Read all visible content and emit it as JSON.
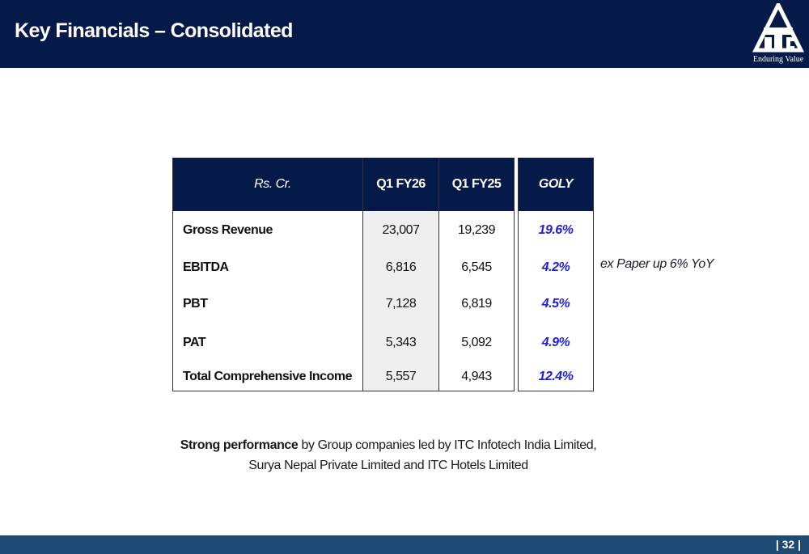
{
  "header": {
    "title": "Key Financials – Consolidated",
    "logo": {
      "tagline": "Enduring Value",
      "icon": "itc-logo-icon"
    }
  },
  "table": {
    "headers": [
      "Rs. Cr.",
      "Q1 FY26",
      "Q1 FY25",
      "GOLY"
    ],
    "rows": [
      {
        "label": "Gross Revenue",
        "cur": "23,007",
        "prev": "19,239",
        "goly": "19.6%"
      },
      {
        "label": "EBITDA",
        "cur": "6,816",
        "prev": "6,545",
        "goly": "4.2%"
      },
      {
        "label": "PBT",
        "cur": "7,128",
        "prev": "6,819",
        "goly": "4.5%"
      },
      {
        "label": "PAT",
        "cur": "5,343",
        "prev": "5,092",
        "goly": "4.9%"
      },
      {
        "label": "Total Comprehensive Income",
        "cur": "5,557",
        "prev": "4,943",
        "goly": "12.4%"
      }
    ]
  },
  "side_note": "ex Paper up 6% YoY",
  "summary": {
    "bold": "Strong performance",
    "line1_rest": " by Group companies led by ITC Infotech India Limited,",
    "line2": "Surya Nepal Private Limited and ITC Hotels Limited"
  },
  "footer": {
    "page_number": "| 32 |"
  },
  "colors": {
    "navy": "#061a4a",
    "footer_blue": "#1f4a75",
    "goly_blue": "#1f1fd6"
  }
}
